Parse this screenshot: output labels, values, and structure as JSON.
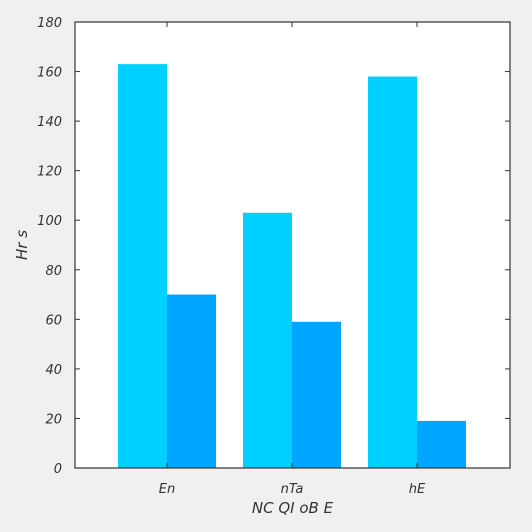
{
  "chart_data": {
    "type": "bar",
    "title": "",
    "xlabel": "NC QI  oB E",
    "ylabel": "Hr  s",
    "categories": [
      "En",
      "nTa",
      "hE"
    ],
    "series": [
      {
        "values": [
          163,
          103,
          158
        ]
      },
      {
        "values": [
          70,
          59,
          19
        ]
      }
    ],
    "ylim": [
      0,
      180
    ],
    "yticks": [
      0,
      20,
      40,
      60,
      80,
      100,
      120,
      140,
      160,
      180
    ],
    "grid": false,
    "colors": [
      "#00d0ff",
      "#00a5ff"
    ],
    "background": "#ffffff",
    "axis_color": "#333333"
  }
}
